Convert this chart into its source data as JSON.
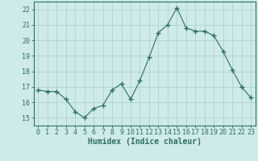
{
  "x": [
    0,
    1,
    2,
    3,
    4,
    5,
    6,
    7,
    8,
    9,
    10,
    11,
    12,
    13,
    14,
    15,
    16,
    17,
    18,
    19,
    20,
    21,
    22,
    23
  ],
  "y": [
    16.8,
    16.7,
    16.7,
    16.2,
    15.4,
    15.0,
    15.6,
    15.8,
    16.8,
    17.2,
    16.2,
    17.4,
    18.9,
    20.5,
    21.0,
    22.1,
    20.8,
    20.6,
    20.6,
    20.3,
    19.3,
    18.1,
    17.0,
    16.3
  ],
  "line_color": "#2e6e65",
  "marker": "+",
  "marker_size": 4,
  "bg_color": "#ceeaea",
  "grid_color_major": "#aacece",
  "grid_color_minor": "#bcd8d8",
  "xlabel": "Humidex (Indice chaleur)",
  "ylim": [
    14.5,
    22.5
  ],
  "xlim": [
    -0.5,
    23.5
  ],
  "yticks": [
    15,
    16,
    17,
    18,
    19,
    20,
    21,
    22
  ],
  "xticks": [
    0,
    1,
    2,
    3,
    4,
    5,
    6,
    7,
    8,
    9,
    10,
    11,
    12,
    13,
    14,
    15,
    16,
    17,
    18,
    19,
    20,
    21,
    22,
    23
  ],
  "tick_color": "#2e6e65",
  "spine_color": "#2e6e65",
  "tick_fontsize": 6.0,
  "xlabel_fontsize": 7.0
}
